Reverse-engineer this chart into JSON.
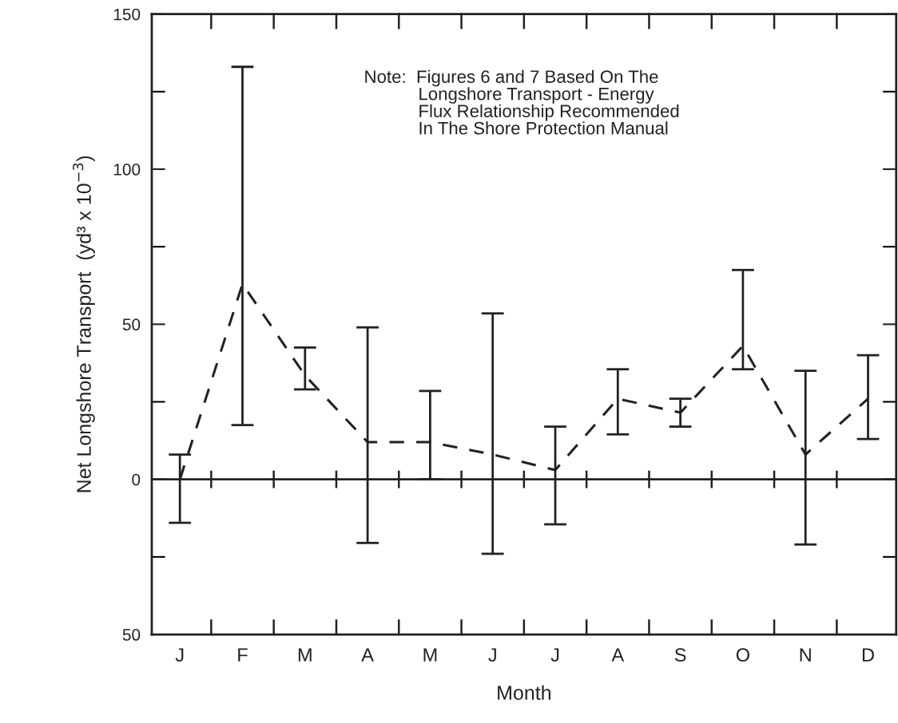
{
  "chart_data": {
    "type": "line",
    "categories": [
      "J",
      "F",
      "M",
      "A",
      "M",
      "J",
      "J",
      "A",
      "S",
      "O",
      "N",
      "D"
    ],
    "series": [
      {
        "color": "#222222",
        "line_style": "dashed",
        "marker": "none",
        "values": [
          0,
          63,
          33.5,
          12,
          12,
          8,
          3,
          26,
          21.5,
          43,
          8,
          26
        ],
        "errors": [
          [
            -14,
            8
          ],
          [
            17.5,
            133
          ],
          [
            29,
            42.5
          ],
          [
            -20.5,
            49
          ],
          [
            0,
            28.5
          ],
          [
            -24,
            53.5
          ],
          [
            -14.5,
            17
          ],
          [
            14.5,
            35.5
          ],
          [
            17,
            26
          ],
          [
            35.5,
            67.5
          ],
          [
            -21,
            35
          ],
          [
            13,
            40
          ]
        ]
      }
    ],
    "xlabel": "Month",
    "ylabel": "Net Longshore Transport  (yd³ x 10$^{−3}$)",
    "ylim": [
      -50,
      150
    ],
    "yticks": [
      {
        "value": -50,
        "label": "50"
      },
      0,
      50,
      100,
      150
    ],
    "ref_lines": [
      {
        "axis": "y",
        "value": 0,
        "color": "#222222",
        "line_style": "solid"
      }
    ],
    "annotations": [
      "Note:  Figures 6 and 7 Based On The\n           Longshore Transport - Energy\n           Flux Relationship Recommended\n           In The Shore Protection Manual"
    ],
    "grid": false,
    "legend": false
  }
}
